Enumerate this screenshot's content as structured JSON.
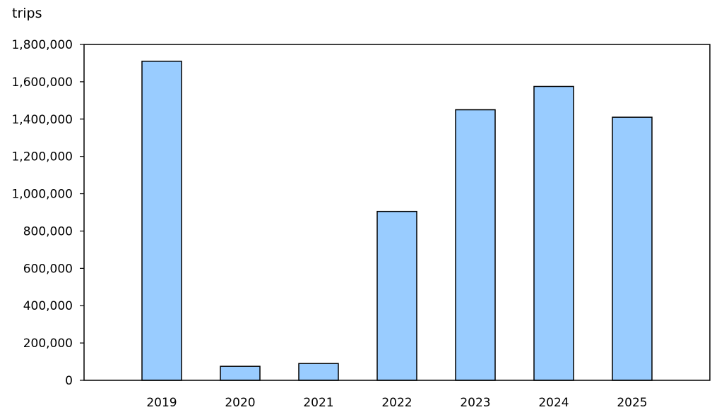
{
  "chart_data": {
    "type": "bar",
    "ylabel": "trips",
    "categories": [
      "2019",
      "2020",
      "2021",
      "2022",
      "2023",
      "2024",
      "2025"
    ],
    "values": [
      1710000,
      75000,
      90000,
      905000,
      1450000,
      1575000,
      1410000
    ],
    "ylim": [
      0,
      1800000
    ],
    "yticks": [
      0,
      200000,
      400000,
      600000,
      800000,
      1000000,
      1200000,
      1400000,
      1600000,
      1800000
    ],
    "ytick_labels": [
      "0",
      "200,000",
      "400,000",
      "600,000",
      "800,000",
      "1,000,000",
      "1,200,000",
      "1,400,000",
      "1,600,000",
      "1,800,000"
    ],
    "bar_color": "#99ccff",
    "bar_edge_color": "#000000",
    "grid": false,
    "legend": "none"
  }
}
